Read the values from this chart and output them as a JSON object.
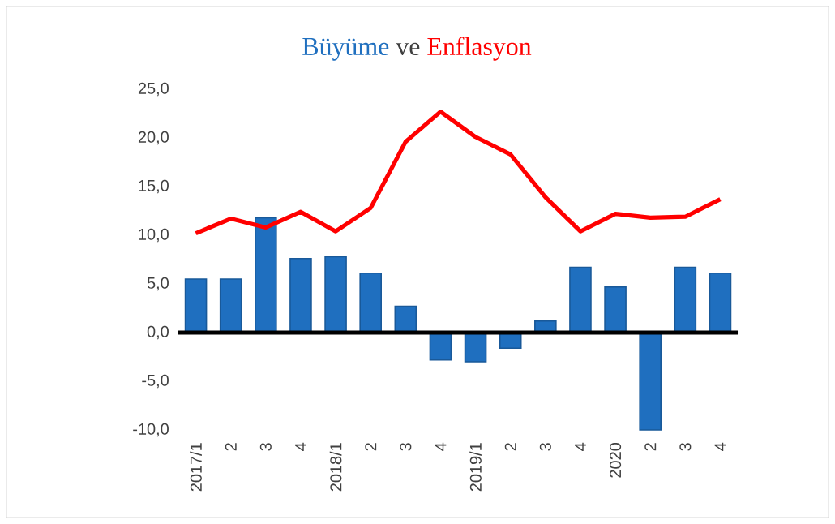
{
  "chart_data": {
    "type": "bar",
    "title": "ve",
    "categories": [
      "2017/1",
      "2",
      "3",
      "4",
      "2018/1",
      "2",
      "3",
      "4",
      "2019/1",
      "2",
      "3",
      "4",
      "2020",
      "2",
      "3",
      "4"
    ],
    "series": [
      {
        "name": "Büyüme",
        "color": "#1f6fbf",
        "values": [
          5.5,
          5.5,
          11.8,
          7.6,
          7.8,
          6.1,
          2.7,
          -2.8,
          -3.0,
          -1.6,
          1.2,
          6.7,
          4.7,
          -10.0,
          6.7,
          6.1
        ]
      },
      {
        "name": "Enflasyon",
        "type": "line",
        "color": "#ff0000",
        "values": [
          10.2,
          11.7,
          10.8,
          12.4,
          10.4,
          12.8,
          19.6,
          22.7,
          20.1,
          18.3,
          13.9,
          10.4,
          12.2,
          11.8,
          11.9,
          13.7
        ]
      }
    ],
    "ylim": [
      -10,
      25
    ],
    "yticks": [
      {
        "value": -10,
        "label": "-10,0"
      },
      {
        "value": -5,
        "label": "-5,0"
      },
      {
        "value": 0,
        "label": "0,0"
      },
      {
        "value": 5,
        "label": "5,0"
      },
      {
        "value": 10,
        "label": "10,0"
      },
      {
        "value": 15,
        "label": "15,0"
      },
      {
        "value": 20,
        "label": "20,0"
      },
      {
        "value": 25,
        "label": "25,0"
      }
    ],
    "legend": "top",
    "marker": "none"
  }
}
